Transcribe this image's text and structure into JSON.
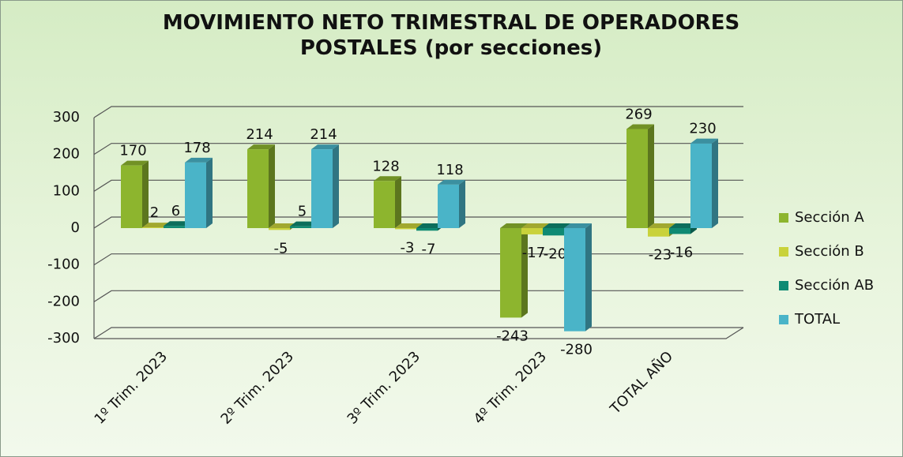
{
  "chart_data": {
    "type": "bar3d",
    "title": "MOVIMIENTO NETO TRIMESTRAL DE OPERADORES POSTALES (por secciones)",
    "categories": [
      "1º Trim. 2023",
      "2º Trim. 2023",
      "3º Trim. 2023",
      "4º Trim. 2023",
      "TOTAL AÑO"
    ],
    "series": [
      {
        "name": "Sección A",
        "color": "#8db52e",
        "values": [
          170,
          214,
          128,
          -243,
          269
        ]
      },
      {
        "name": "Sección B",
        "color": "#c9d23b",
        "values": [
          2,
          -5,
          -3,
          -17,
          -23
        ]
      },
      {
        "name": "Sección AB",
        "color": "#0f8a73",
        "values": [
          6,
          5,
          -7,
          -20,
          -16
        ]
      },
      {
        "name": "TOTAL",
        "color": "#4ab4c8",
        "values": [
          178,
          214,
          118,
          -280,
          230
        ]
      }
    ],
    "ylim": [
      -300,
      300
    ],
    "yticks": [
      -300,
      -200,
      -100,
      0,
      100,
      200,
      300
    ],
    "grid": true,
    "legend": "right"
  }
}
